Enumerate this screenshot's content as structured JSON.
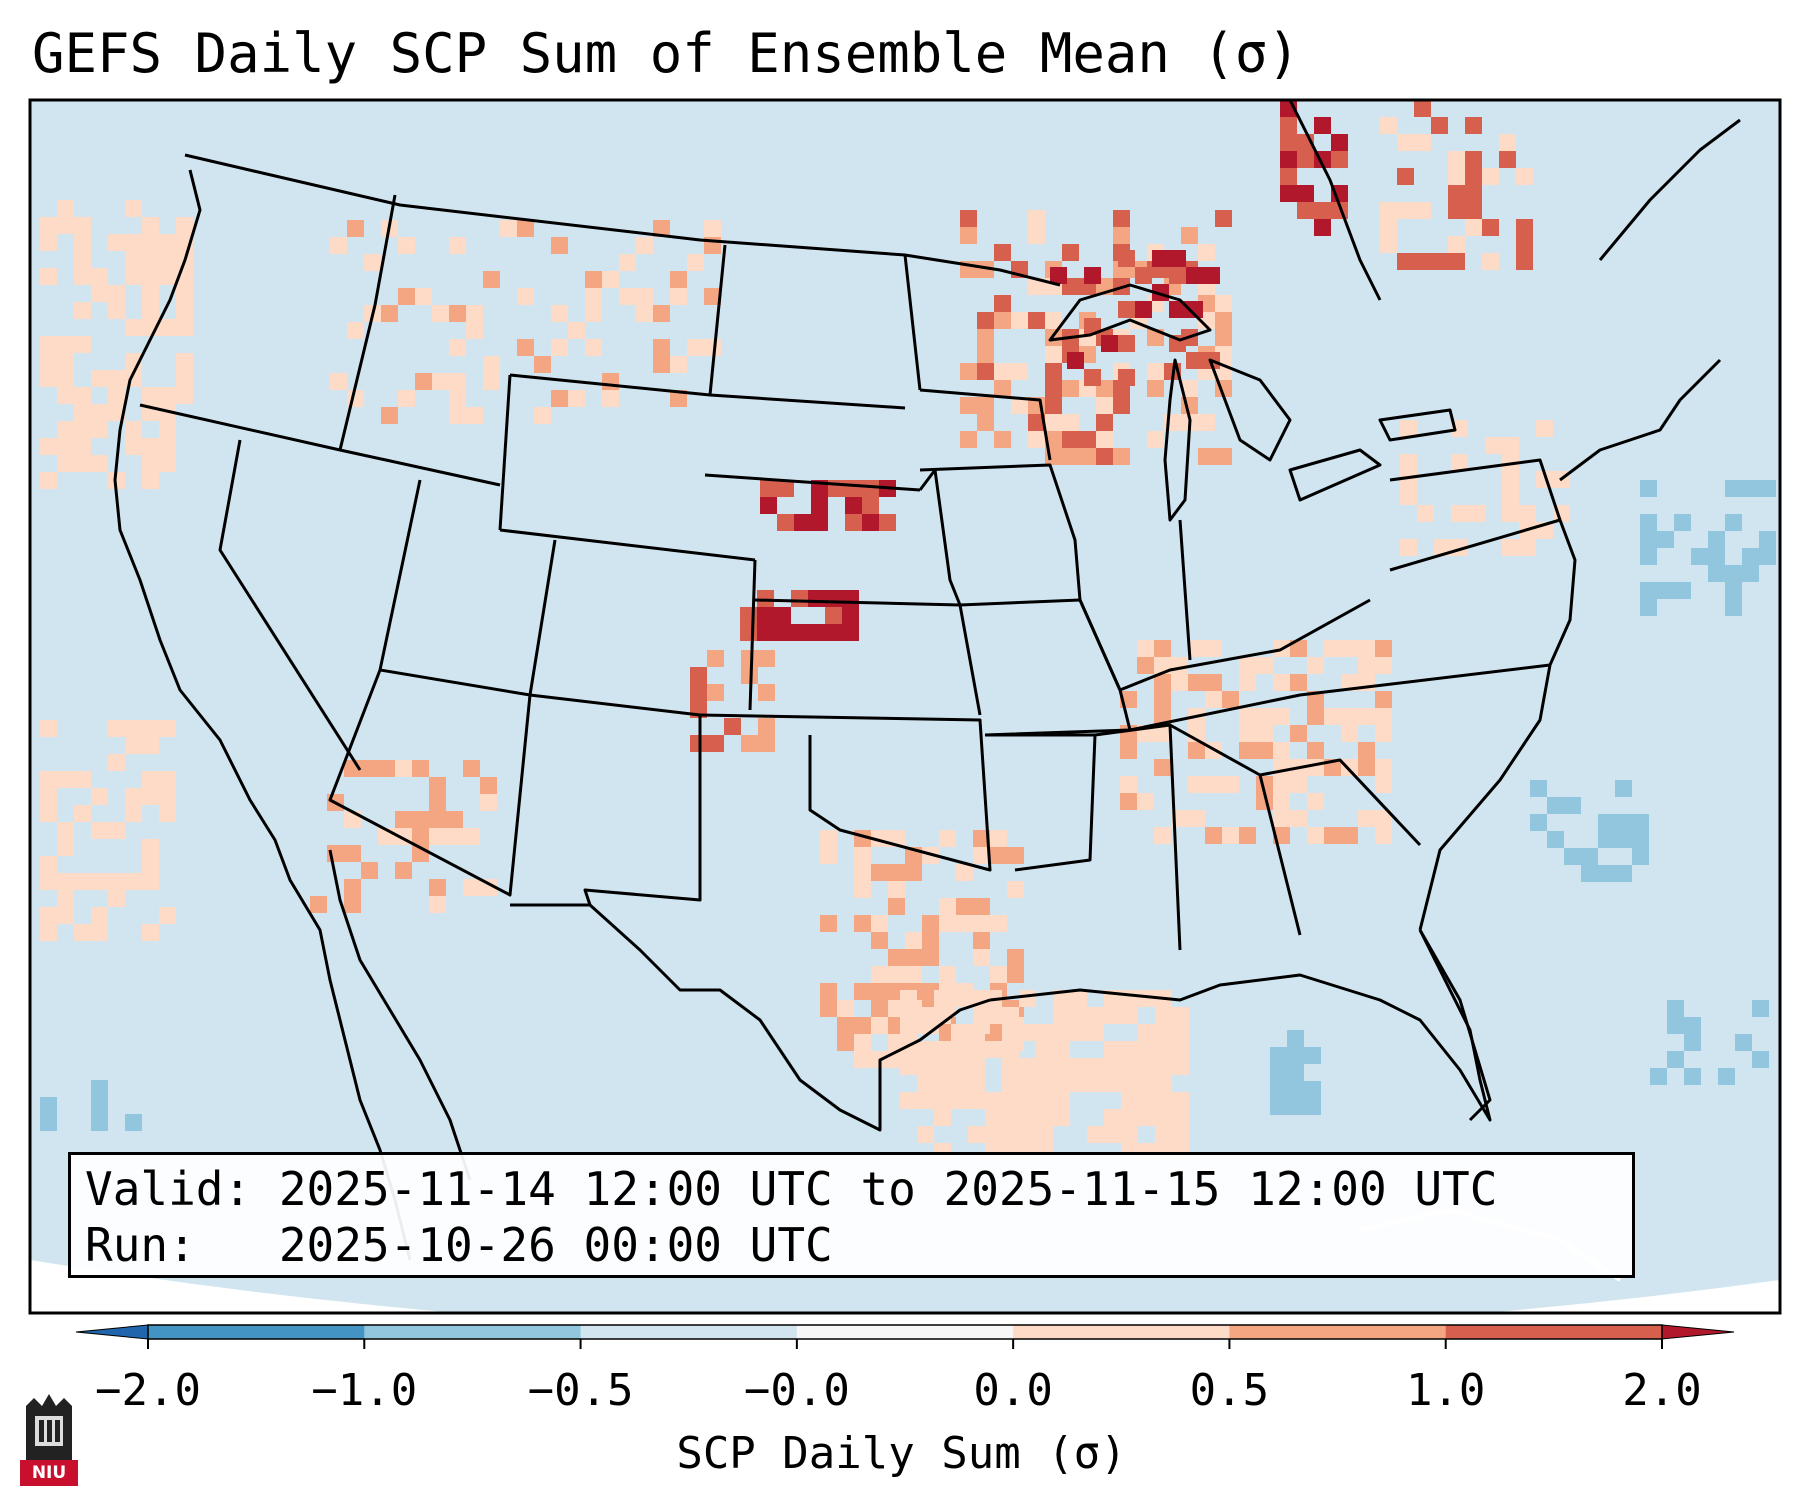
{
  "title": "GEFS Daily SCP Sum of Ensemble Mean (σ)",
  "info": {
    "valid_line": "Valid: 2025-11-14 12:00 UTC to 2025-11-15 12:00 UTC",
    "run_line": "Run:   2025-10-26 00:00 UTC"
  },
  "colorbar": {
    "title": "SCP Daily Sum (σ)",
    "ticks": [
      "−2.0",
      "−1.0",
      "−0.5",
      "−0.0",
      "0.0",
      "0.5",
      "1.0",
      "2.0"
    ],
    "colors": [
      "#4393c3",
      "#92c5de",
      "#d1e5f0",
      "#f7f7f7",
      "#fddbc7",
      "#f4a582",
      "#d6604d"
    ],
    "extend_min_color": "#2166ac",
    "extend_max_color": "#b2182b"
  },
  "map": {
    "background_color": "#d1e5f0",
    "border_color": "#000000"
  },
  "logo": {
    "text": "NIU"
  }
}
